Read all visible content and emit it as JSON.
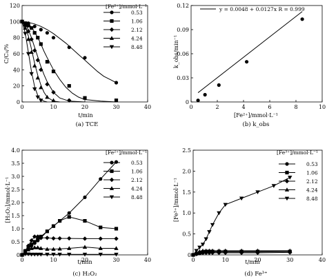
{
  "chart_data": [
    {
      "type": "line",
      "caption": "(a) TCE",
      "xlabel": "t/min",
      "ylabel": "C/C₀/%",
      "xlim": [
        0,
        40
      ],
      "ylim": [
        0,
        120
      ],
      "xticks": [
        "0",
        "10",
        "20",
        "30",
        "40"
      ],
      "yticks": [
        "0",
        "20",
        "40",
        "60",
        "80",
        "100",
        "120"
      ],
      "legend_title": "[Fe²⁺]/mmol·L⁻¹",
      "legend_position": "top-right",
      "series": [
        {
          "name": "0.53",
          "marker": "circle",
          "x": [
            0,
            2,
            4,
            6,
            8,
            10,
            15,
            20,
            30
          ],
          "y": [
            100,
            98,
            94,
            90,
            86,
            80,
            68,
            55,
            24
          ],
          "curve_x": [
            0,
            2,
            4,
            6,
            8,
            10,
            12,
            14,
            16,
            18,
            20,
            22,
            24,
            26,
            28,
            30
          ],
          "curve_y": [
            100,
            99,
            97,
            94,
            90,
            85,
            79,
            73,
            66,
            59,
            52,
            45,
            38,
            32,
            28,
            24
          ]
        },
        {
          "name": "1.06",
          "marker": "square",
          "x": [
            0,
            1,
            2,
            3,
            4,
            5,
            6,
            8,
            10,
            15,
            20,
            30
          ],
          "y": [
            100,
            98,
            95,
            92,
            86,
            80,
            72,
            50,
            38,
            20,
            5,
            2
          ],
          "curve_x": [
            0,
            1,
            2,
            3,
            4,
            5,
            6,
            7,
            8,
            10,
            12,
            14,
            16,
            18,
            20,
            25,
            30
          ],
          "curve_y": [
            100,
            99,
            97,
            93,
            87,
            80,
            72,
            63,
            55,
            40,
            28,
            18,
            11,
            6,
            3,
            1,
            0
          ]
        },
        {
          "name": "2.12",
          "marker": "diamond",
          "x": [
            0,
            1,
            2,
            3,
            4,
            5,
            6,
            8,
            10,
            15
          ],
          "y": [
            100,
            95,
            88,
            78,
            64,
            52,
            40,
            22,
            12,
            2
          ],
          "curve_x": [
            0,
            1,
            2,
            3,
            4,
            5,
            6,
            7,
            8,
            10,
            12,
            15,
            20
          ],
          "curve_y": [
            100,
            97,
            90,
            80,
            68,
            56,
            44,
            34,
            25,
            12,
            5,
            1,
            0
          ]
        },
        {
          "name": "4.24",
          "marker": "triangle-up",
          "x": [
            0,
            1,
            2,
            3,
            4,
            5,
            6,
            8,
            10
          ],
          "y": [
            100,
            92,
            78,
            62,
            45,
            30,
            18,
            6,
            2
          ],
          "curve_x": [
            0,
            1,
            2,
            3,
            4,
            5,
            6,
            7,
            8,
            10,
            12
          ],
          "curve_y": [
            100,
            94,
            82,
            66,
            48,
            33,
            21,
            12,
            6,
            1,
            0
          ]
        },
        {
          "name": "8.48",
          "marker": "triangle-down",
          "x": [
            0,
            1,
            2,
            3,
            4,
            5,
            6
          ],
          "y": [
            100,
            85,
            60,
            35,
            16,
            6,
            2
          ],
          "curve_x": [
            0,
            1,
            2,
            3,
            4,
            5,
            6,
            7,
            8
          ],
          "curve_y": [
            100,
            86,
            62,
            38,
            19,
            8,
            3,
            1,
            0
          ]
        }
      ]
    },
    {
      "type": "scatter",
      "caption": "(b) k_obs",
      "xlabel": "[Fe²⁺]/mmol·L⁻¹",
      "ylabel": "k_obs/min⁻¹",
      "xlim": [
        0,
        10
      ],
      "ylim": [
        0,
        0.12
      ],
      "xticks": [
        "0",
        "2",
        "4",
        "6",
        "8",
        "10"
      ],
      "yticks": [
        "0",
        "0.03",
        "0.06",
        "0.09",
        "0.12"
      ],
      "fit_label": "y = 0.0048 + 0.0127x   R = 0.999",
      "fit": {
        "intercept": 0.0048,
        "slope": 0.0127,
        "x_range": [
          0.53,
          8.48
        ]
      },
      "x": [
        0.53,
        1.06,
        2.12,
        4.24,
        8.48
      ],
      "y": [
        0.002,
        0.009,
        0.021,
        0.05,
        0.103
      ]
    },
    {
      "type": "line",
      "caption": "(c) H₂O₂",
      "xlabel": "t/min",
      "ylabel": "[H₂O₂]/mmol·L⁻¹",
      "xlim": [
        0,
        40
      ],
      "ylim": [
        0,
        4
      ],
      "xticks": [
        "0",
        "10",
        "20",
        "30",
        "40"
      ],
      "yticks": [
        "0",
        "0.5",
        "1.0",
        "1.5",
        "2.0",
        "2.5",
        "3.0",
        "3.5",
        "4.0"
      ],
      "legend_title": "[Fe²⁺]/mmol·L⁻¹",
      "legend_position": "top-right",
      "series": [
        {
          "name": "0.53",
          "marker": "circle",
          "x": [
            0,
            1,
            2,
            3,
            4,
            5,
            6,
            8,
            10,
            12,
            15,
            20,
            25,
            30
          ],
          "y": [
            0,
            0.15,
            0.25,
            0.35,
            0.45,
            0.55,
            0.65,
            0.9,
            1.1,
            1.3,
            1.6,
            2.2,
            2.9,
            3.55
          ]
        },
        {
          "name": "1.06",
          "marker": "square",
          "x": [
            0,
            1,
            2,
            3,
            4,
            5,
            6,
            8,
            10,
            12,
            15,
            20,
            25,
            30
          ],
          "y": [
            0,
            0.15,
            0.3,
            0.4,
            0.5,
            0.6,
            0.7,
            0.9,
            1.1,
            1.3,
            1.45,
            1.3,
            1.05,
            1.0
          ]
        },
        {
          "name": "2.12",
          "marker": "diamond",
          "x": [
            0,
            1,
            2,
            3,
            4,
            5,
            6,
            8,
            10,
            12,
            15,
            20,
            25,
            30
          ],
          "y": [
            0,
            0.15,
            0.35,
            0.55,
            0.7,
            0.7,
            0.65,
            0.65,
            0.63,
            0.63,
            0.63,
            0.62,
            0.62,
            0.62
          ]
        },
        {
          "name": "4.24",
          "marker": "triangle-up",
          "x": [
            0,
            1,
            2,
            3,
            4,
            5,
            6,
            8,
            10,
            12,
            15,
            20,
            25,
            30
          ],
          "y": [
            0,
            0.1,
            0.2,
            0.25,
            0.28,
            0.28,
            0.25,
            0.22,
            0.22,
            0.23,
            0.25,
            0.3,
            0.25,
            0.25
          ]
        },
        {
          "name": "8.48",
          "marker": "triangle-down",
          "x": [
            0,
            1,
            2,
            3,
            4,
            5,
            6,
            8,
            10,
            12,
            15,
            20,
            25,
            30
          ],
          "y": [
            0,
            0.03,
            0.03,
            0.02,
            0.02,
            0.02,
            0.02,
            0.02,
            0.02,
            0.02,
            0.02,
            0.02,
            0.02,
            0.02
          ]
        }
      ]
    },
    {
      "type": "line",
      "caption": "(d) Fe³⁺",
      "xlabel": "t/min",
      "ylabel": "[Fe³⁺]/mmol·L⁻¹",
      "xlim": [
        0,
        40
      ],
      "ylim": [
        0,
        2.5
      ],
      "xticks": [
        "0",
        "10",
        "20",
        "30",
        "40"
      ],
      "yticks": [
        "0",
        "0.5",
        "1.0",
        "1.5",
        "2.0",
        "2.5"
      ],
      "legend_title": "[Fe³⁺]/mmol·L⁻¹",
      "legend_position": "top-right",
      "series": [
        {
          "name": "0.53",
          "marker": "circle",
          "x": [
            0,
            1,
            2,
            3,
            4,
            5,
            6,
            8,
            10,
            15,
            20,
            30
          ],
          "y": [
            0,
            0.02,
            0.04,
            0.05,
            0.06,
            0.06,
            0.07,
            0.07,
            0.07,
            0.07,
            0.07,
            0.08
          ]
        },
        {
          "name": "1.06",
          "marker": "square",
          "x": [
            0,
            1,
            2,
            3,
            4,
            5,
            6,
            8,
            10,
            15,
            20,
            30
          ],
          "y": [
            0,
            0.03,
            0.05,
            0.07,
            0.08,
            0.08,
            0.08,
            0.08,
            0.08,
            0.08,
            0.08,
            0.08
          ]
        },
        {
          "name": "2.12",
          "marker": "diamond",
          "x": [
            0,
            1,
            2,
            3,
            4,
            5,
            6,
            8,
            10,
            15,
            20,
            30
          ],
          "y": [
            0,
            0.02,
            0.04,
            0.05,
            0.05,
            0.05,
            0.05,
            0.05,
            0.05,
            0.05,
            0.05,
            0.06
          ]
        },
        {
          "name": "4.24",
          "marker": "triangle-up",
          "x": [
            0,
            1,
            2,
            3,
            4,
            5,
            6,
            8,
            10,
            15,
            20,
            30
          ],
          "y": [
            0,
            0.05,
            0.08,
            0.1,
            0.1,
            0.1,
            0.1,
            0.1,
            0.1,
            0.1,
            0.1,
            0.1
          ]
        },
        {
          "name": "8.48",
          "marker": "triangle-down",
          "x": [
            0,
            1,
            2,
            3,
            4,
            5,
            6,
            8,
            10,
            15,
            20,
            25,
            30
          ],
          "y": [
            0,
            0.1,
            0.18,
            0.25,
            0.38,
            0.55,
            0.72,
            1.0,
            1.2,
            1.35,
            1.5,
            1.65,
            1.85
          ]
        }
      ]
    }
  ]
}
